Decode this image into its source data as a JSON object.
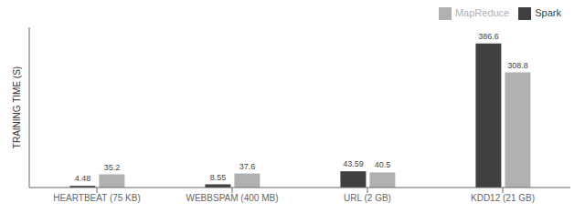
{
  "chart_data": {
    "type": "bar",
    "categories": [
      "HEARTBEAT (75 KB)",
      "WEBBSPAM (400 MB)",
      "URL (2 GB)",
      "KDD12 (21 GB)"
    ],
    "series": [
      {
        "name": "Spark",
        "color": "#404040",
        "values": [
          4.48,
          8.55,
          43.59,
          386.6
        ]
      },
      {
        "name": "MapReduce",
        "color": "#b0b0b0",
        "values": [
          35.2,
          37.6,
          40.5,
          308.8
        ]
      }
    ],
    "ylabel": "TRAINING TIME (S)",
    "ylim": [
      0,
      430
    ],
    "tick_labels": "x",
    "data_labels": true,
    "legend": "upper right",
    "grid": false
  }
}
